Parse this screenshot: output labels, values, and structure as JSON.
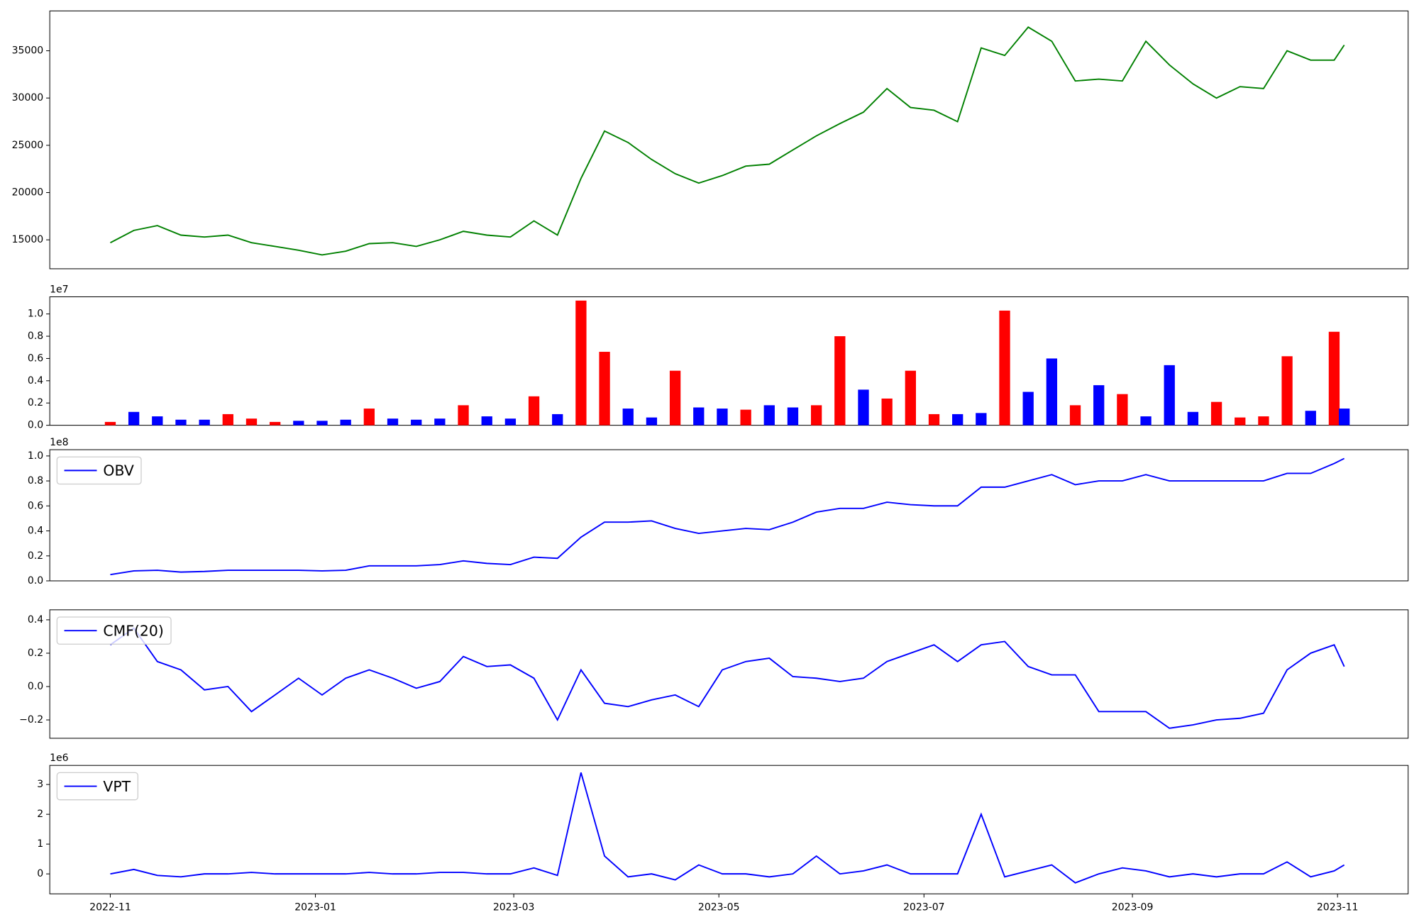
{
  "chart_data": [
    {
      "type": "line",
      "color": "green",
      "xlim": [
        "2022-10-14",
        "2023-11-22"
      ],
      "x": [
        "2022-11-01",
        "2022-11-08",
        "2022-11-15",
        "2022-11-22",
        "2022-11-29",
        "2022-12-06",
        "2022-12-13",
        "2022-12-20",
        "2022-12-27",
        "2023-01-03",
        "2023-01-10",
        "2023-01-17",
        "2023-01-24",
        "2023-01-31",
        "2023-02-07",
        "2023-02-14",
        "2023-02-21",
        "2023-02-28",
        "2023-03-07",
        "2023-03-14",
        "2023-03-21",
        "2023-03-28",
        "2023-04-04",
        "2023-04-11",
        "2023-04-18",
        "2023-04-25",
        "2023-05-02",
        "2023-05-09",
        "2023-05-16",
        "2023-05-23",
        "2023-05-30",
        "2023-06-06",
        "2023-06-13",
        "2023-06-20",
        "2023-06-27",
        "2023-07-04",
        "2023-07-11",
        "2023-07-18",
        "2023-07-25",
        "2023-08-01",
        "2023-08-08",
        "2023-08-15",
        "2023-08-22",
        "2023-08-29",
        "2023-09-05",
        "2023-09-12",
        "2023-09-19",
        "2023-09-26",
        "2023-10-03",
        "2023-10-10",
        "2023-10-17",
        "2023-10-24",
        "2023-10-31",
        "2023-11-03"
      ],
      "values": [
        14700,
        16000,
        16500,
        15500,
        15300,
        15500,
        14700,
        14300,
        13900,
        13400,
        13800,
        14600,
        14700,
        14300,
        15000,
        15900,
        15500,
        15300,
        17000,
        15500,
        21500,
        26500,
        25300,
        23500,
        22000,
        21000,
        21800,
        22800,
        23000,
        24500,
        26000,
        27300,
        28500,
        31000,
        29000,
        28700,
        27500,
        35300,
        34500,
        37500,
        36000,
        31800,
        32000,
        31800,
        36000,
        33500,
        31500,
        30000,
        31200,
        31000,
        35000,
        34000,
        34000,
        35600
      ],
      "ylim": [
        11940,
        39210
      ],
      "yticks": [
        15000,
        20000,
        25000,
        30000,
        35000
      ]
    },
    {
      "type": "bar",
      "xlim": [
        "2022-10-14",
        "2023-11-22"
      ],
      "y_offset_label": "1e7",
      "values": [
        300000,
        1200000,
        800000,
        500000,
        500000,
        1000000,
        600000,
        300000,
        400000,
        400000,
        500000,
        1500000,
        600000,
        500000,
        600000,
        1800000,
        800000,
        600000,
        2600000,
        1000000,
        11200000,
        6600000,
        1500000,
        700000,
        4900000,
        1600000,
        1500000,
        1400000,
        1800000,
        1600000,
        1800000,
        8000000,
        3200000,
        2400000,
        4900000,
        1000000,
        1000000,
        1100000,
        10300000,
        3000000,
        6000000,
        1800000,
        3600000,
        2800000,
        800000,
        5400000,
        1200000,
        2100000,
        700000,
        800000,
        6200000,
        1300000,
        8400000,
        1500000
      ],
      "bar_colors": [
        "red",
        "blue",
        "blue",
        "blue",
        "blue",
        "red",
        "red",
        "red",
        "blue",
        "blue",
        "blue",
        "red",
        "blue",
        "blue",
        "blue",
        "red",
        "blue",
        "blue",
        "red",
        "blue",
        "red",
        "red",
        "blue",
        "blue",
        "red",
        "blue",
        "blue",
        "red",
        "blue",
        "blue",
        "red",
        "red",
        "blue",
        "red",
        "red",
        "red",
        "blue",
        "blue",
        "red",
        "blue",
        "blue",
        "red",
        "blue",
        "red",
        "blue",
        "blue",
        "blue",
        "red",
        "red",
        "red",
        "red",
        "blue",
        "red",
        "blue"
      ],
      "ylim": [
        0,
        11540000
      ],
      "yticks": [
        {
          "value": 0,
          "label": "0.0"
        },
        {
          "value": 2000000,
          "label": "0.2"
        },
        {
          "value": 4000000,
          "label": "0.4"
        },
        {
          "value": 6000000,
          "label": "0.6"
        },
        {
          "value": 8000000,
          "label": "0.8"
        },
        {
          "value": 10000000,
          "label": "1.0"
        }
      ]
    },
    {
      "type": "line",
      "xlim": [
        "2022-10-14",
        "2023-11-22"
      ],
      "y_offset_label": "1e8",
      "legend": "upper left",
      "series": [
        {
          "name": "OBV",
          "color": "blue",
          "values": [
            5000000,
            8000000,
            8500000,
            7000000,
            7500000,
            8500000,
            8500000,
            8500000,
            8500000,
            8000000,
            8500000,
            12000000,
            12000000,
            12000000,
            13000000,
            16000000,
            14000000,
            13000000,
            19000000,
            18000000,
            35000000,
            47000000,
            47000000,
            48000000,
            42000000,
            38000000,
            40000000,
            42000000,
            41000000,
            47000000,
            55000000,
            58000000,
            58000000,
            63000000,
            61000000,
            60000000,
            60000000,
            75000000,
            75000000,
            80000000,
            85000000,
            77000000,
            80000000,
            80000000,
            85000000,
            80000000,
            80000000,
            80000000,
            80000000,
            80000000,
            86000000,
            86000000,
            94000000,
            98000000
          ]
        }
      ],
      "ylim": [
        0,
        105000000
      ],
      "yticks": [
        {
          "value": 0,
          "label": "0.0"
        },
        {
          "value": 20000000,
          "label": "0.2"
        },
        {
          "value": 40000000,
          "label": "0.4"
        },
        {
          "value": 60000000,
          "label": "0.6"
        },
        {
          "value": 80000000,
          "label": "0.8"
        },
        {
          "value": 100000000,
          "label": "1.0"
        }
      ]
    },
    {
      "type": "line",
      "xlim": [
        "2022-10-14",
        "2023-11-22"
      ],
      "legend": "upper left",
      "series": [
        {
          "name": "CMF(20)",
          "color": "blue",
          "values": [
            0.25,
            0.35,
            0.15,
            0.1,
            -0.02,
            0.0,
            -0.15,
            -0.05,
            0.05,
            -0.05,
            0.05,
            0.1,
            0.05,
            -0.01,
            0.03,
            0.18,
            0.12,
            0.13,
            0.05,
            -0.2,
            0.1,
            -0.1,
            -0.12,
            -0.08,
            -0.05,
            -0.12,
            0.1,
            0.15,
            0.17,
            0.06,
            0.05,
            0.03,
            0.05,
            0.15,
            0.2,
            0.25,
            0.15,
            0.25,
            0.27,
            0.12,
            0.07,
            0.07,
            -0.15,
            -0.15,
            -0.15,
            -0.25,
            -0.23,
            -0.2,
            -0.19,
            -0.16,
            0.1,
            0.2,
            0.25,
            0.12
          ]
        }
      ],
      "ylim": [
        -0.31,
        0.46
      ],
      "yticks": [
        {
          "value": -0.2,
          "label": "−0.2"
        },
        {
          "value": 0,
          "label": "0.0"
        },
        {
          "value": 0.2,
          "label": "0.2"
        },
        {
          "value": 0.4,
          "label": "0.4"
        }
      ]
    },
    {
      "type": "line",
      "xlim": [
        "2022-10-14",
        "2023-11-22"
      ],
      "y_offset_label": "1e6",
      "legend": "upper left",
      "series": [
        {
          "name": "VPT",
          "color": "blue",
          "values": [
            0,
            150000,
            -50000,
            -100000,
            0,
            0,
            50000,
            0,
            0,
            0,
            0,
            50000,
            0,
            0,
            50000,
            50000,
            0,
            0,
            200000,
            -50000,
            3400000,
            600000,
            -100000,
            0,
            -200000,
            300000,
            0,
            0,
            -100000,
            0,
            600000,
            0,
            100000,
            300000,
            0,
            0,
            0,
            2000000,
            -100000,
            100000,
            300000,
            -300000,
            0,
            200000,
            100000,
            -100000,
            0,
            -100000,
            0,
            0,
            400000,
            -100000,
            100000,
            300000
          ]
        }
      ],
      "ylim": [
        -670000,
        3640000
      ],
      "yticks": [
        {
          "value": 0,
          "label": "0"
        },
        {
          "value": 1000000,
          "label": "1"
        },
        {
          "value": 2000000,
          "label": "2"
        },
        {
          "value": 3000000,
          "label": "3"
        }
      ],
      "xticks": [
        {
          "value": "2022-11-01",
          "label": "2022-11"
        },
        {
          "value": "2023-01-01",
          "label": "2023-01"
        },
        {
          "value": "2023-03-01",
          "label": "2023-03"
        },
        {
          "value": "2023-05-01",
          "label": "2023-05"
        },
        {
          "value": "2023-07-01",
          "label": "2023-07"
        },
        {
          "value": "2023-09-01",
          "label": "2023-09"
        },
        {
          "value": "2023-11-01",
          "label": "2023-11"
        }
      ]
    }
  ]
}
